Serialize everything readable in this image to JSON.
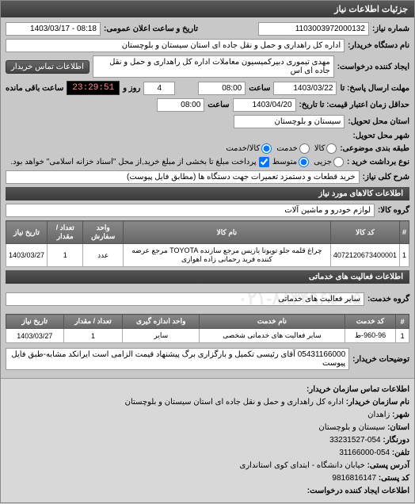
{
  "header": {
    "title": "جزئیات اطلاعات نیاز"
  },
  "top": {
    "number_label": "شماره نیاز:",
    "number_value": "1103003972000132",
    "announce_label": "تاریخ و ساعت اعلان عمومی:",
    "announce_value": "08:18 - 1403/03/17",
    "buyer_label": "نام دستگاه خریدار:",
    "buyer_value": "اداره کل راهداری و حمل و نقل جاده ای استان سیستان و بلوچستان",
    "requester_label": "ایجاد کننده درخواست:",
    "requester_value": "مهدی تیموری دبیرکمیسیون معاملات اداره کل راهداری و حمل و نقل جاده ای اس",
    "contact_btn": "اطلاعات تماس خریدار",
    "deadline_label": "مهلت ارسال پاسخ: تا",
    "deadline_date": "1403/03/22",
    "time_label": "ساعت",
    "deadline_time": "08:00",
    "days_value": "4",
    "days_unit": "روز و",
    "countdown": "23:29:51",
    "remaining": "ساعت باقی مانده",
    "price_until_label": "حداقل زمان اعتبار قیمت: تا تاریخ:",
    "price_until_date": "1403/04/20",
    "price_until_time": "08:00",
    "delivery_state_label": "استان محل تحویل:",
    "delivery_state_value": "سیستان و بلوچستان",
    "delivery_city_label": "شهر محل تحویل:",
    "category_label": "طبقه بندی موضوعی:",
    "cat_goods": "کالا",
    "cat_service": "خدمت",
    "cat_both": "کالا/خدمت",
    "purchase_type_label": "نوع برداشت خرید :",
    "pt_small": "جزیی",
    "pt_medium": "متوسط",
    "pt_note": "پرداخت مبلغ تا بخشی از مبلغ خرید,از محل \"اسناد خزانه اسلامی\" خواهد بود.",
    "desc_label": "شرح کلی نیاز:",
    "desc_value": "خرید قطعات و دستمزد تعمیرات جهت دستگاه ها (مطابق فایل پیوست)"
  },
  "goods": {
    "section_title": "اطلاعات کالاهای مورد نیاز",
    "group_label": "گروه کالا:",
    "group_value": "لوازم خودرو و ماشین آلات",
    "columns": [
      "#",
      "کد کالا",
      "نام کالا",
      "واحد سفارش",
      "تعداد / مقدار",
      "تاریخ نیاز"
    ],
    "rows": [
      [
        "1",
        "4072120673400001",
        "چراغ قلمه جلو تویوتا یاریس مرجع سازنده TOYOTA مرجع عرضه کننده فرید رحمانی زاده اهوازی",
        "عدد",
        "1",
        "1403/03/27"
      ]
    ]
  },
  "services": {
    "section_title": "اطلاعات فعالیت های خدماتی",
    "group_label": "گروه خدمت:",
    "group_value": "سایر فعالیت های خدماتی",
    "watermark": "۰۲۱-۸۸۳۴۹۶۷۰-۵",
    "columns": [
      "#",
      "کد خدمت",
      "نام خدمت",
      "واحد اندازه گیری",
      "تعداد / مقدار",
      "تاریخ نیاز"
    ],
    "rows": [
      [
        "1",
        "960-96-ط",
        "سایر فعالیت های خدماتی شخصی",
        "سایر",
        "1",
        "1403/03/27"
      ]
    ]
  },
  "buyer_notes": {
    "label": "توضیحات خریدار:",
    "value": "05431166000 آقای رئیسی تکمیل و بارگزاری برگ پیشنهاد قیمت الزامی است ایرانکد مشابه-طبق فایل پیوست"
  },
  "contact": {
    "heading": "اطلاعات تماس سازمان خریدار:",
    "org_label": "نام سازمان خریدار:",
    "org_value": "اداره کل راهداری و حمل و نقل جاده ای استان سیستان و بلوچستان",
    "city_label": "شهر:",
    "city_value": "زاهدان",
    "state_label": "استان:",
    "state_value": "سیستان و بلوچستان",
    "fax_label": "دورنگار:",
    "fax_value": "054-33231527",
    "phone_label": "تلفن:",
    "phone_value": "054-31166000",
    "address_label": "آدرس پستی:",
    "address_value": "خیابان دانشگاه - ابتدای کوی استانداری",
    "postal_label": "کد پستی:",
    "postal_value": "9816816147",
    "creator_label": "اطلاعات ایجاد کننده درخواست:"
  }
}
